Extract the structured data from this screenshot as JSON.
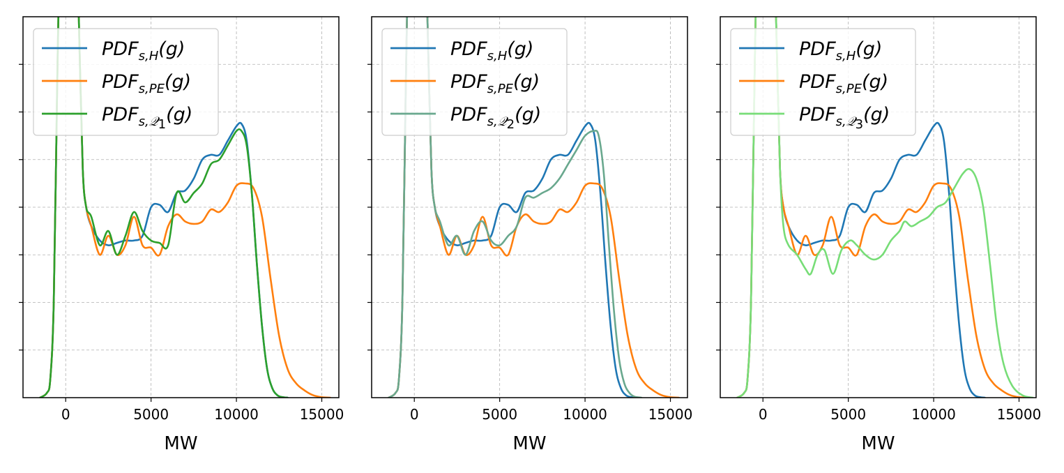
{
  "chart_data": [
    {
      "type": "line",
      "xlabel": "MW",
      "ylabel": "",
      "xlim": [
        -2500,
        16000
      ],
      "xticks": [
        0,
        5000,
        10000,
        15000
      ],
      "xtick_labels": [
        "0",
        "5000",
        "10000",
        "15000"
      ],
      "grid": true,
      "legend_position": "upper-left",
      "series": [
        {
          "name": "PDF_{s,H}(g)",
          "color": "#1f77b4",
          "x": [
            -1500,
            -1100,
            -900,
            -700,
            -500,
            -300,
            0,
            300,
            600,
            800,
            1000,
            1200,
            1500,
            2000,
            2500,
            3000,
            3500,
            4000,
            4500,
            5000,
            5500,
            6000,
            6500,
            7000,
            7500,
            8000,
            8500,
            9000,
            9500,
            10000,
            10300,
            10600,
            10900,
            11200,
            11500,
            11800,
            12100,
            12400,
            12700,
            13000
          ],
          "y": [
            0,
            0.01,
            0.04,
            0.2,
            0.65,
            1.05,
            1.3,
            1.2,
            1.05,
            0.75,
            0.48,
            0.4,
            0.36,
            0.33,
            0.32,
            0.325,
            0.33,
            0.33,
            0.34,
            0.4,
            0.405,
            0.39,
            0.43,
            0.435,
            0.46,
            0.5,
            0.51,
            0.51,
            0.54,
            0.57,
            0.575,
            0.54,
            0.43,
            0.28,
            0.15,
            0.06,
            0.02,
            0.005,
            0.001,
            0
          ]
        },
        {
          "name": "PDF_{s,PE}(g)",
          "color": "#ff7f0e",
          "x": [
            -1500,
            -1100,
            -900,
            -700,
            -500,
            -300,
            0,
            300,
            600,
            800,
            1000,
            1200,
            1500,
            2000,
            2500,
            3000,
            3500,
            4000,
            4500,
            5000,
            5500,
            6000,
            6500,
            7000,
            7500,
            8000,
            8500,
            9000,
            9500,
            10000,
            10500,
            11000,
            11500,
            12000,
            12500,
            13000,
            13500,
            14000,
            14500,
            15000,
            15500
          ],
          "y": [
            0,
            0.01,
            0.04,
            0.2,
            0.65,
            1.05,
            1.3,
            1.2,
            1.05,
            0.75,
            0.48,
            0.4,
            0.36,
            0.3,
            0.34,
            0.3,
            0.32,
            0.38,
            0.32,
            0.315,
            0.3,
            0.36,
            0.385,
            0.37,
            0.365,
            0.37,
            0.395,
            0.39,
            0.41,
            0.445,
            0.45,
            0.44,
            0.38,
            0.25,
            0.13,
            0.06,
            0.03,
            0.015,
            0.005,
            0.001,
            0
          ]
        },
        {
          "name": "PDF_{s,\\mathcal{Q}_1}(g)",
          "color": "#2ca02c",
          "x": [
            -1500,
            -1100,
            -900,
            -700,
            -500,
            -300,
            0,
            300,
            600,
            800,
            1000,
            1200,
            1500,
            2000,
            2500,
            3000,
            3500,
            4000,
            4500,
            5000,
            5500,
            6000,
            6500,
            7000,
            7500,
            8000,
            8500,
            9000,
            9500,
            10000,
            10300,
            10600,
            10900,
            11200,
            11500,
            11800,
            12100,
            12400,
            12700,
            13000
          ],
          "y": [
            0,
            0.01,
            0.04,
            0.2,
            0.65,
            1.05,
            1.3,
            1.2,
            1.05,
            0.75,
            0.48,
            0.4,
            0.38,
            0.32,
            0.35,
            0.3,
            0.34,
            0.39,
            0.35,
            0.33,
            0.325,
            0.32,
            0.43,
            0.41,
            0.43,
            0.45,
            0.49,
            0.5,
            0.53,
            0.56,
            0.56,
            0.53,
            0.43,
            0.28,
            0.15,
            0.06,
            0.02,
            0.005,
            0.001,
            0
          ]
        }
      ]
    },
    {
      "type": "line",
      "xlabel": "MW",
      "ylabel": "",
      "xlim": [
        -2500,
        16000
      ],
      "xticks": [
        0,
        5000,
        10000,
        15000
      ],
      "xtick_labels": [
        "0",
        "5000",
        "10000",
        "15000"
      ],
      "grid": true,
      "legend_position": "upper-left",
      "series": [
        {
          "name": "PDF_{s,H}(g)",
          "color": "#1f77b4",
          "x": [
            -1500,
            -1100,
            -900,
            -700,
            -500,
            -300,
            0,
            300,
            600,
            800,
            1000,
            1200,
            1500,
            2000,
            2500,
            3000,
            3500,
            4000,
            4500,
            5000,
            5500,
            6000,
            6500,
            7000,
            7500,
            8000,
            8500,
            9000,
            9500,
            10000,
            10300,
            10600,
            10900,
            11200,
            11500,
            11800,
            12100,
            12400,
            12700,
            13000
          ],
          "y": [
            0,
            0.01,
            0.04,
            0.2,
            0.65,
            1.05,
            1.3,
            1.2,
            1.05,
            0.75,
            0.48,
            0.4,
            0.36,
            0.33,
            0.32,
            0.325,
            0.33,
            0.33,
            0.34,
            0.4,
            0.405,
            0.39,
            0.43,
            0.435,
            0.46,
            0.5,
            0.51,
            0.51,
            0.54,
            0.57,
            0.575,
            0.54,
            0.43,
            0.28,
            0.15,
            0.06,
            0.02,
            0.005,
            0.001,
            0
          ]
        },
        {
          "name": "PDF_{s,PE}(g)",
          "color": "#ff7f0e",
          "x": [
            -1500,
            -1100,
            -900,
            -700,
            -500,
            -300,
            0,
            300,
            600,
            800,
            1000,
            1200,
            1500,
            2000,
            2500,
            3000,
            3500,
            4000,
            4500,
            5000,
            5500,
            6000,
            6500,
            7000,
            7500,
            8000,
            8500,
            9000,
            9500,
            10000,
            10500,
            11000,
            11500,
            12000,
            12500,
            13000,
            13500,
            14000,
            14500,
            15000,
            15500
          ],
          "y": [
            0,
            0.01,
            0.04,
            0.2,
            0.65,
            1.05,
            1.3,
            1.2,
            1.05,
            0.75,
            0.48,
            0.4,
            0.36,
            0.3,
            0.34,
            0.3,
            0.32,
            0.38,
            0.32,
            0.315,
            0.3,
            0.36,
            0.385,
            0.37,
            0.365,
            0.37,
            0.395,
            0.39,
            0.41,
            0.445,
            0.45,
            0.44,
            0.38,
            0.25,
            0.13,
            0.06,
            0.03,
            0.015,
            0.005,
            0.001,
            0
          ]
        },
        {
          "name": "PDF_{s,\\mathcal{Q}_2}(g)",
          "color": "#69a88e",
          "x": [
            -1500,
            -1100,
            -900,
            -700,
            -500,
            -300,
            0,
            300,
            600,
            800,
            1000,
            1200,
            1500,
            2000,
            2500,
            3000,
            3500,
            4000,
            4500,
            5000,
            5500,
            6000,
            6500,
            7000,
            7500,
            8000,
            8500,
            9000,
            9500,
            10000,
            10500,
            10800,
            11100,
            11400,
            11700,
            12000,
            12300,
            12600,
            12900,
            13300
          ],
          "y": [
            0,
            0.01,
            0.04,
            0.2,
            0.65,
            1.05,
            1.3,
            1.2,
            1.05,
            0.75,
            0.48,
            0.4,
            0.37,
            0.32,
            0.34,
            0.3,
            0.35,
            0.37,
            0.33,
            0.32,
            0.34,
            0.36,
            0.42,
            0.42,
            0.43,
            0.44,
            0.46,
            0.49,
            0.52,
            0.55,
            0.56,
            0.55,
            0.47,
            0.32,
            0.18,
            0.08,
            0.03,
            0.01,
            0.002,
            0
          ]
        }
      ]
    },
    {
      "type": "line",
      "xlabel": "MW",
      "ylabel": "",
      "xlim": [
        -2500,
        16000
      ],
      "xticks": [
        0,
        5000,
        10000,
        15000
      ],
      "xtick_labels": [
        "0",
        "5000",
        "10000",
        "15000"
      ],
      "grid": true,
      "legend_position": "upper-left",
      "series": [
        {
          "name": "PDF_{s,H}(g)",
          "color": "#1f77b4",
          "x": [
            -1500,
            -1100,
            -900,
            -700,
            -500,
            -300,
            0,
            300,
            600,
            800,
            1000,
            1200,
            1500,
            2000,
            2500,
            3000,
            3500,
            4000,
            4500,
            5000,
            5500,
            6000,
            6500,
            7000,
            7500,
            8000,
            8500,
            9000,
            9500,
            10000,
            10300,
            10600,
            10900,
            11200,
            11500,
            11800,
            12100,
            12400,
            12700,
            13000
          ],
          "y": [
            0,
            0.01,
            0.04,
            0.2,
            0.65,
            1.05,
            1.3,
            1.2,
            1.05,
            0.75,
            0.48,
            0.4,
            0.36,
            0.33,
            0.32,
            0.325,
            0.33,
            0.33,
            0.34,
            0.4,
            0.405,
            0.39,
            0.43,
            0.435,
            0.46,
            0.5,
            0.51,
            0.51,
            0.54,
            0.57,
            0.575,
            0.54,
            0.43,
            0.28,
            0.15,
            0.06,
            0.02,
            0.005,
            0.001,
            0
          ]
        },
        {
          "name": "PDF_{s,PE}(g)",
          "color": "#ff7f0e",
          "x": [
            -1500,
            -1100,
            -900,
            -700,
            -500,
            -300,
            0,
            300,
            600,
            800,
            1000,
            1200,
            1500,
            2000,
            2500,
            3000,
            3500,
            4000,
            4500,
            5000,
            5500,
            6000,
            6500,
            7000,
            7500,
            8000,
            8500,
            9000,
            9500,
            10000,
            10500,
            11000,
            11500,
            12000,
            12500,
            13000,
            13500,
            14000,
            14500,
            15000,
            15500
          ],
          "y": [
            0,
            0.01,
            0.04,
            0.2,
            0.65,
            1.05,
            1.3,
            1.2,
            1.05,
            0.75,
            0.48,
            0.4,
            0.36,
            0.3,
            0.34,
            0.3,
            0.32,
            0.38,
            0.32,
            0.315,
            0.3,
            0.36,
            0.385,
            0.37,
            0.365,
            0.37,
            0.395,
            0.39,
            0.41,
            0.445,
            0.45,
            0.44,
            0.38,
            0.25,
            0.13,
            0.06,
            0.03,
            0.015,
            0.005,
            0.001,
            0
          ]
        },
        {
          "name": "PDF_{s,\\mathcal{Q}_3}(g)",
          "color": "#77dd77",
          "x": [
            -1500,
            -1100,
            -900,
            -700,
            -500,
            -300,
            0,
            300,
            600,
            800,
            1000,
            1200,
            1500,
            2000,
            2500,
            2800,
            3200,
            3600,
            4100,
            4600,
            5100,
            5500,
            6000,
            6500,
            7000,
            7500,
            8000,
            8300,
            8700,
            9200,
            9700,
            10200,
            10700,
            11200,
            11700,
            12100,
            12500,
            12900,
            13300,
            13700,
            14100,
            14600,
            15200,
            15800
          ],
          "y": [
            0,
            0.01,
            0.04,
            0.2,
            0.65,
            1.05,
            1.3,
            1.2,
            1.05,
            0.75,
            0.48,
            0.36,
            0.32,
            0.3,
            0.27,
            0.26,
            0.3,
            0.31,
            0.26,
            0.31,
            0.33,
            0.32,
            0.3,
            0.29,
            0.3,
            0.33,
            0.35,
            0.37,
            0.36,
            0.37,
            0.38,
            0.4,
            0.41,
            0.44,
            0.47,
            0.48,
            0.46,
            0.4,
            0.28,
            0.15,
            0.07,
            0.025,
            0.005,
            0
          ]
        }
      ]
    }
  ]
}
